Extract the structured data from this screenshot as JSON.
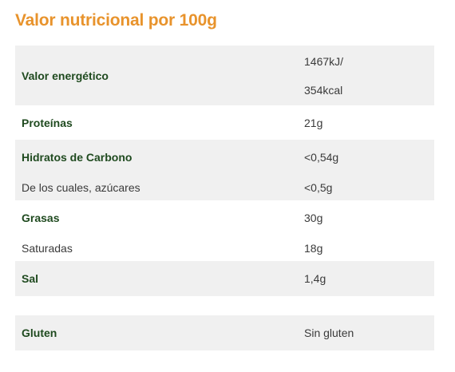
{
  "title": "Valor nutricional por 100g",
  "nutrition": {
    "energy": {
      "label": "Valor energético",
      "value_line1": "1467kJ/",
      "value_line2": "354kcal"
    },
    "protein": {
      "label": "Proteínas",
      "value": "21g"
    },
    "carbs": {
      "label": "Hidratos de Carbono",
      "value": "<0,54g"
    },
    "sugars": {
      "label": "De los cuales, azúcares",
      "value": "<0,5g"
    },
    "fat": {
      "label": "Grasas",
      "value": "30g"
    },
    "saturated": {
      "label": "Saturadas",
      "value": "18g"
    },
    "salt": {
      "label": "Sal",
      "value": "1,4g"
    }
  },
  "gluten": {
    "label": "Gluten",
    "value": "Sin gluten"
  },
  "colors": {
    "title": "#e8932c",
    "bold_label": "#1f4a1f",
    "row_shade": "#f0f0f0",
    "text": "#3a3a3a"
  }
}
